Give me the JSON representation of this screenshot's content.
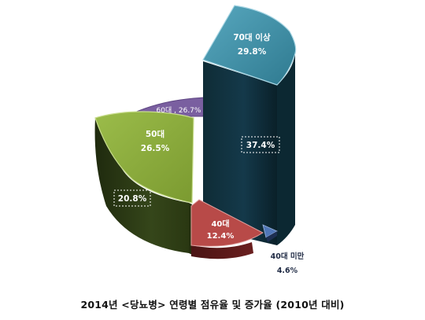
{
  "chart_data": {
    "type": "pie",
    "style": "3d-exploded-columns",
    "title": "2014년 <당뇨병> 연령별 점유율 및 증가율 (2010년 대비)",
    "slices": [
      {
        "label": "70대 이상",
        "share": 29.8,
        "share_text": "29.8%",
        "growth": 37.4,
        "growth_text": "37.4%",
        "color": "#3f8ea3"
      },
      {
        "label": "60대",
        "share": 26.7,
        "share_text": "26.7%",
        "growth": null,
        "growth_text": "",
        "color": "#7a5fa0"
      },
      {
        "label": "50대",
        "share": 26.5,
        "share_text": "26.5%",
        "growth": 20.8,
        "growth_text": "20.8%",
        "color": "#8cac3c"
      },
      {
        "label": "40대",
        "share": 12.4,
        "share_text": "12.4%",
        "growth": null,
        "growth_text": "",
        "color": "#b84a48"
      },
      {
        "label": "40대 미만",
        "share": 4.6,
        "share_text": "4.6%",
        "growth": null,
        "growth_text": "",
        "color": "#5077b8"
      }
    ],
    "labels": {
      "s70": "70대 이상",
      "s70_value": "29.8%",
      "s60": "60대 , 26.7%",
      "s50": "50대",
      "s50_value": "26.5%",
      "s40": "40대",
      "s40_value": "12.4%",
      "sunder40": "40대 미만",
      "sunder40_value": "4.6%",
      "box70": "37.4%",
      "box50": "20.8%"
    }
  }
}
